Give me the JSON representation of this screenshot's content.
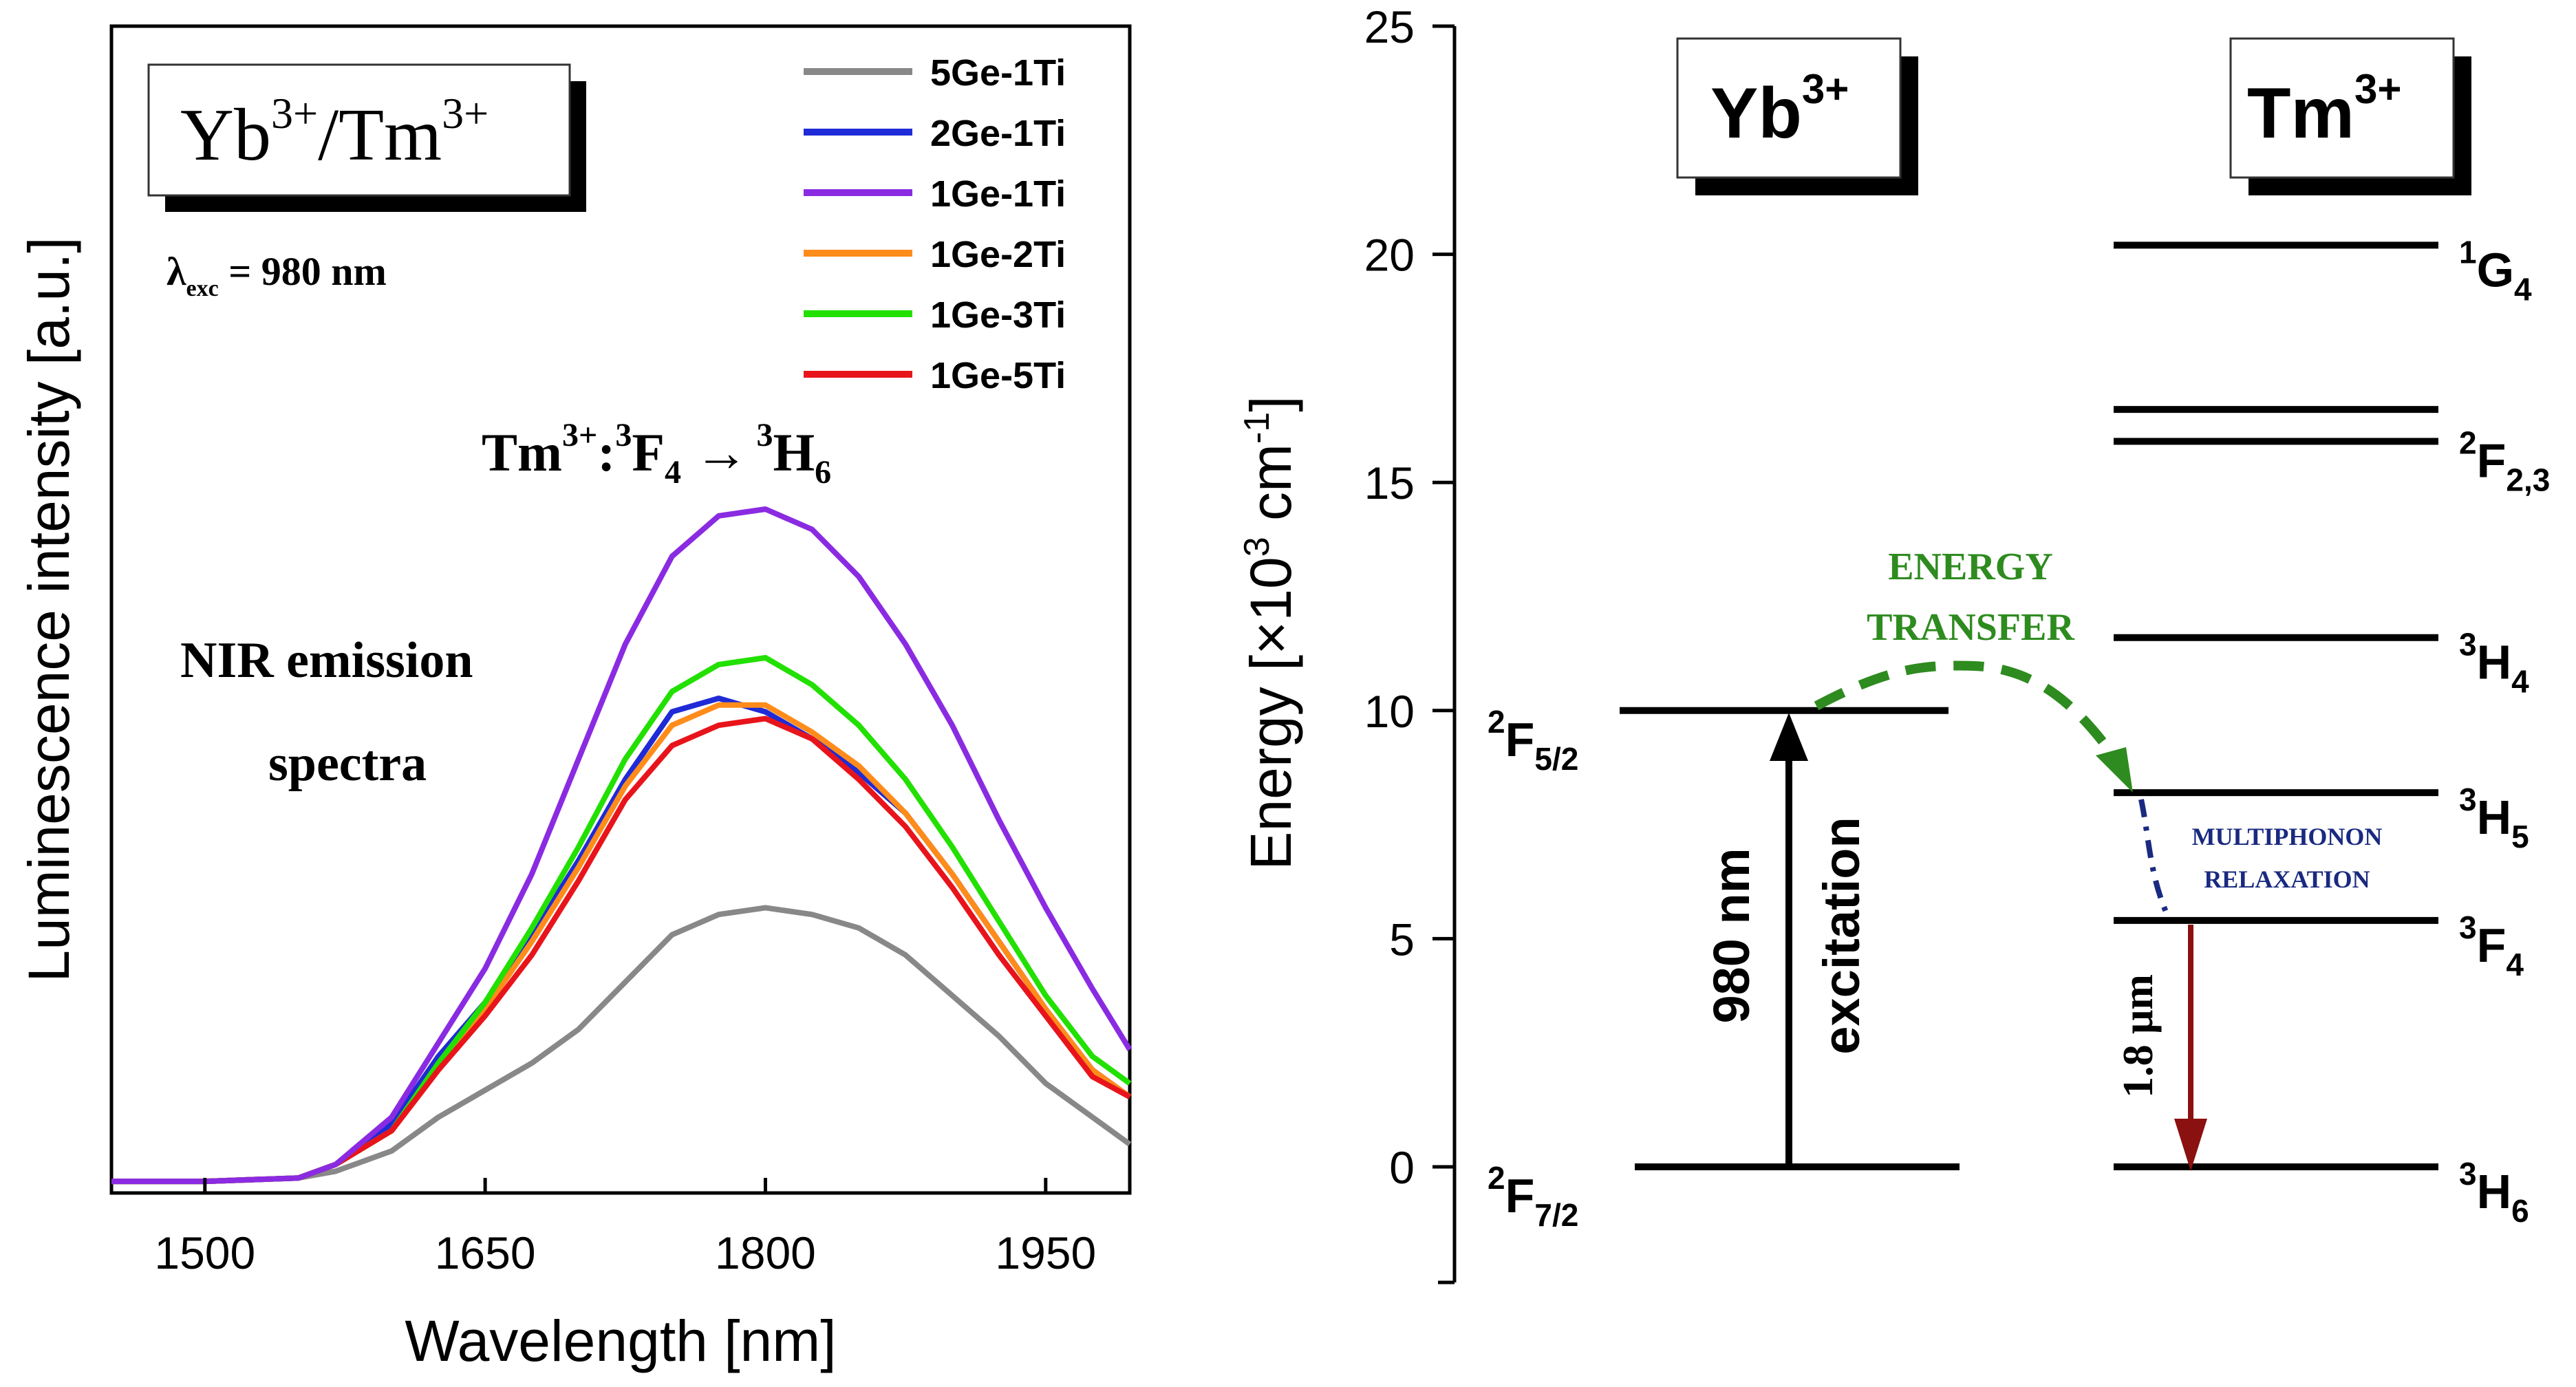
{
  "chart_data": [
    {
      "type": "line",
      "xlabel": "Wavelength [nm]",
      "ylabel": "Luminescence intensity [a.u.]",
      "xlim": [
        1450,
        1995
      ],
      "ylim": [
        0,
        1.0
      ],
      "xticks": [
        1500,
        1650,
        1800,
        1950
      ],
      "inset_box": {
        "main": "Yb",
        "sup1": "3+",
        "mid": "/Tm",
        "sup2": "3+"
      },
      "excitation": {
        "lambda": "λ",
        "sub": "exc",
        "rest": " = 980 nm"
      },
      "transition": {
        "ion": "Tm",
        "ion_sup": "3+",
        "colon": ":",
        "from_sup": "3",
        "from": "F",
        "from_sub": "4",
        "arrow": "→",
        "to_sup": "3",
        "to": "H",
        "to_sub": "6"
      },
      "annotation_line1": "NIR emission",
      "annotation_line2": "spectra",
      "x": [
        1450,
        1500,
        1550,
        1570,
        1600,
        1625,
        1650,
        1675,
        1700,
        1725,
        1750,
        1775,
        1800,
        1825,
        1850,
        1875,
        1900,
        1925,
        1950,
        1975,
        1995
      ],
      "series": [
        {
          "name": "5Ge-1Ti",
          "color": "#888888",
          "values": [
            0.005,
            0.005,
            0.01,
            0.02,
            0.05,
            0.1,
            0.14,
            0.18,
            0.23,
            0.3,
            0.37,
            0.4,
            0.41,
            0.4,
            0.38,
            0.34,
            0.28,
            0.22,
            0.15,
            0.1,
            0.06
          ]
        },
        {
          "name": "2Ge-1Ti",
          "color": "#1f2bd6",
          "values": [
            0.005,
            0.005,
            0.01,
            0.03,
            0.09,
            0.19,
            0.27,
            0.37,
            0.48,
            0.6,
            0.7,
            0.72,
            0.7,
            0.66,
            0.61,
            0.55,
            0.46,
            0.36,
            0.26,
            0.17,
            0.13
          ]
        },
        {
          "name": "1Ge-1Ti",
          "color": "#8a2be2",
          "values": [
            0.005,
            0.005,
            0.01,
            0.03,
            0.1,
            0.21,
            0.32,
            0.46,
            0.63,
            0.8,
            0.93,
            0.99,
            1.0,
            0.97,
            0.9,
            0.8,
            0.68,
            0.54,
            0.41,
            0.29,
            0.2
          ]
        },
        {
          "name": "1Ge-2Ti",
          "color": "#ff8c1a",
          "values": [
            0.005,
            0.005,
            0.01,
            0.03,
            0.08,
            0.17,
            0.26,
            0.36,
            0.47,
            0.59,
            0.68,
            0.71,
            0.71,
            0.67,
            0.62,
            0.55,
            0.46,
            0.36,
            0.26,
            0.17,
            0.13
          ]
        },
        {
          "name": "1Ge-3Ti",
          "color": "#22e000",
          "values": [
            0.005,
            0.005,
            0.01,
            0.03,
            0.08,
            0.18,
            0.27,
            0.38,
            0.5,
            0.63,
            0.73,
            0.77,
            0.78,
            0.74,
            0.68,
            0.6,
            0.5,
            0.39,
            0.28,
            0.19,
            0.15
          ]
        },
        {
          "name": "1Ge-5Ti",
          "color": "#e8141b",
          "values": [
            0.005,
            0.005,
            0.01,
            0.03,
            0.08,
            0.17,
            0.25,
            0.34,
            0.45,
            0.57,
            0.65,
            0.68,
            0.69,
            0.66,
            0.6,
            0.53,
            0.44,
            0.34,
            0.25,
            0.16,
            0.13
          ]
        }
      ]
    },
    {
      "type": "energy-level-diagram",
      "ylabel_text": "Energy [×10",
      "ylabel_sup3": "3",
      "ylabel_unit": " cm",
      "ylabel_supm1": "-1",
      "ylabel_close": "]",
      "ylim": [
        -2.5,
        25
      ],
      "yticks": [
        0,
        5,
        10,
        15,
        20,
        25
      ],
      "ions": {
        "yb": {
          "name": "Yb",
          "sup": "3+"
        },
        "tm": {
          "name": "Tm",
          "sup": "3+"
        }
      },
      "yb_levels": [
        {
          "energy": 10.0,
          "sup": "2",
          "letter": "F",
          "sub": "5/2"
        },
        {
          "energy": 0.0,
          "sup": "2",
          "letter": "F",
          "sub": "7/2"
        }
      ],
      "tm_levels": [
        {
          "energy": 20.2,
          "sup": "1",
          "letter": "G",
          "sub": "4"
        },
        {
          "energy": 16.6,
          "sup": "",
          "letter": "",
          "sub": ""
        },
        {
          "energy": 15.9,
          "sup": "2",
          "letter": "F",
          "sub": "2,3"
        },
        {
          "energy": 11.6,
          "sup": "3",
          "letter": "H",
          "sub": "4"
        },
        {
          "energy": 8.2,
          "sup": "3",
          "letter": "H",
          "sub": "5"
        },
        {
          "energy": 5.4,
          "sup": "3",
          "letter": "F",
          "sub": "4"
        },
        {
          "energy": 0.0,
          "sup": "3",
          "letter": "H",
          "sub": "6"
        }
      ],
      "excitation_wavelength": "980 nm",
      "excitation_label": "excitation",
      "energy_transfer_line1": "ENERGY",
      "energy_transfer_line2": "TRANSFER",
      "multiphonon_line1": "MULTIPHONON",
      "multiphonon_line2": "RELAXATION",
      "emission_label": "1.8 μm",
      "colors": {
        "transfer": "#2e8b1f",
        "multiphonon": "#1a2a80",
        "emission": "#8b1010"
      }
    }
  ]
}
